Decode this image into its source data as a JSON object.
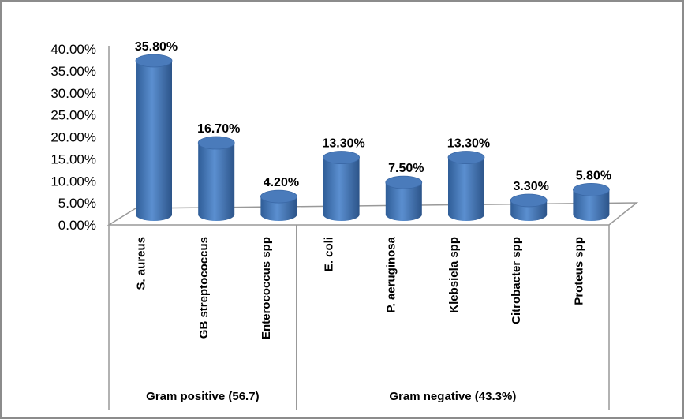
{
  "chart_data": {
    "type": "bar",
    "title": "",
    "xlabel": "",
    "ylabel": "",
    "ylim": [
      0,
      40
    ],
    "y_ticks": [
      "0.00%",
      "5.00%",
      "10.00%",
      "15.00%",
      "20.00%",
      "25.00%",
      "30.00%",
      "35.00%",
      "40.00%"
    ],
    "categories": [
      "S. aureus",
      "GB streptococcus",
      "Enterococcus spp",
      "E. coli",
      "P. aeruginosa",
      "Klebsiela spp",
      "Citrobacter spp",
      "Proteus spp"
    ],
    "values": [
      35.8,
      16.7,
      4.2,
      13.3,
      7.5,
      13.3,
      3.3,
      5.8
    ],
    "data_labels": [
      "35.80%",
      "16.70%",
      "4.20%",
      "13.30%",
      "7.50%",
      "13.30%",
      "3.30%",
      "5.80%"
    ],
    "groups": [
      {
        "label": "Gram positive (56.7)",
        "count": 3
      },
      {
        "label": "Gram negative (43.3%)",
        "count": 5
      }
    ],
    "bar_color": "#4f81bd",
    "grid": false,
    "legend": "none"
  }
}
